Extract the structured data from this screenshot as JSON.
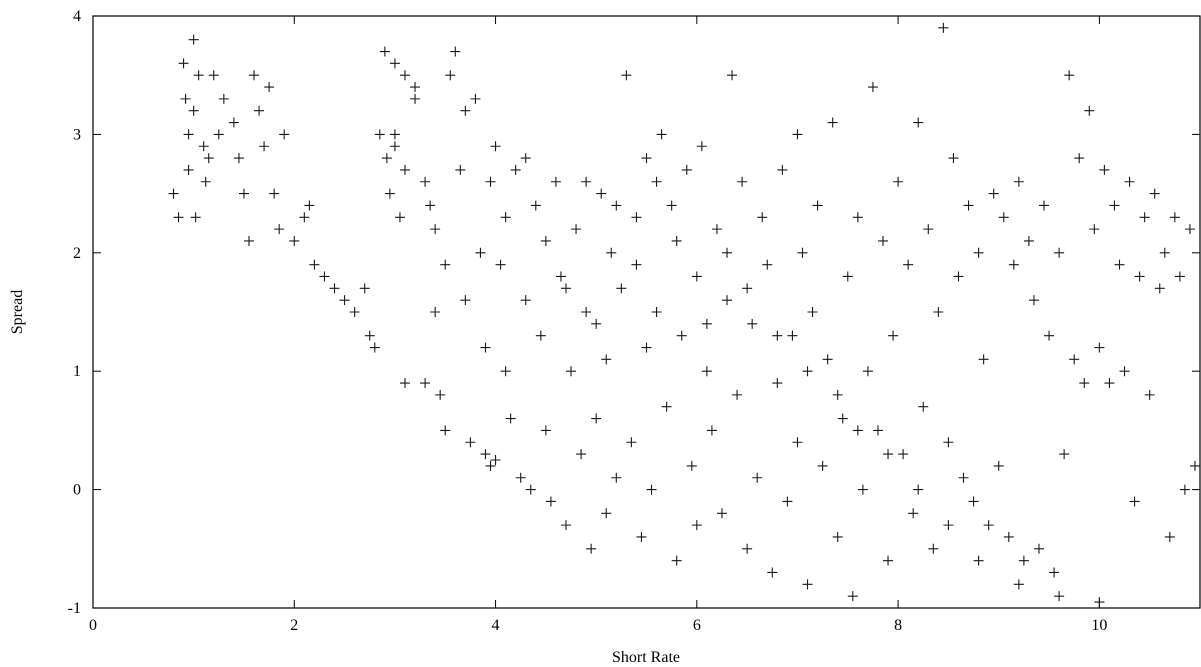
{
  "chart_data": {
    "type": "scatter",
    "title": "",
    "xlabel": "Short Rate",
    "ylabel": "Spread",
    "xlim": [
      0,
      11
    ],
    "ylim": [
      -1,
      4
    ],
    "x_ticks": [
      0,
      2,
      4,
      6,
      8,
      10
    ],
    "y_ticks": [
      -1,
      0,
      1,
      2,
      3,
      4
    ],
    "x_tick_labels": [
      "0",
      "2",
      "4",
      "6",
      "8",
      "10"
    ],
    "y_tick_labels": [
      "-1",
      "0",
      "1",
      "2",
      "3",
      "4"
    ],
    "grid": false,
    "legend": "none",
    "marker": "plus",
    "marker_color": "#1a1a1a",
    "series": [
      {
        "points": [
          [
            0.8,
            2.5
          ],
          [
            0.85,
            2.3
          ],
          [
            0.9,
            3.6
          ],
          [
            0.92,
            3.3
          ],
          [
            0.95,
            3.0
          ],
          [
            0.95,
            2.7
          ],
          [
            1.0,
            3.8
          ],
          [
            1.0,
            3.2
          ],
          [
            1.02,
            2.3
          ],
          [
            1.05,
            3.5
          ],
          [
            1.1,
            2.9
          ],
          [
            1.12,
            2.6
          ],
          [
            1.15,
            2.8
          ],
          [
            1.2,
            3.5
          ],
          [
            1.25,
            3.0
          ],
          [
            1.3,
            3.3
          ],
          [
            1.4,
            3.1
          ],
          [
            1.45,
            2.8
          ],
          [
            1.5,
            2.5
          ],
          [
            1.55,
            2.1
          ],
          [
            1.6,
            3.5
          ],
          [
            1.65,
            3.2
          ],
          [
            1.7,
            2.9
          ],
          [
            1.75,
            3.4
          ],
          [
            1.8,
            2.5
          ],
          [
            1.85,
            2.2
          ],
          [
            1.9,
            3.0
          ],
          [
            2.0,
            2.1
          ],
          [
            2.1,
            2.3
          ],
          [
            2.15,
            2.4
          ],
          [
            2.2,
            1.9
          ],
          [
            2.3,
            1.8
          ],
          [
            2.4,
            1.7
          ],
          [
            2.5,
            1.6
          ],
          [
            2.6,
            1.5
          ],
          [
            2.7,
            1.7
          ],
          [
            2.75,
            1.3
          ],
          [
            2.8,
            1.2
          ],
          [
            2.85,
            3.0
          ],
          [
            2.9,
            3.7
          ],
          [
            2.92,
            2.8
          ],
          [
            2.95,
            2.5
          ],
          [
            3.0,
            3.6
          ],
          [
            3.0,
            2.9
          ],
          [
            3.05,
            2.3
          ],
          [
            3.1,
            3.5
          ],
          [
            3.1,
            0.9
          ],
          [
            3.2,
            3.4
          ],
          [
            3.3,
            2.6
          ],
          [
            3.3,
            0.9
          ],
          [
            3.4,
            2.2
          ],
          [
            3.4,
            1.5
          ],
          [
            3.45,
            0.8
          ],
          [
            3.5,
            1.9
          ],
          [
            3.5,
            0.5
          ],
          [
            3.6,
            3.7
          ],
          [
            3.65,
            2.7
          ],
          [
            3.7,
            1.6
          ],
          [
            3.75,
            0.4
          ],
          [
            3.8,
            3.3
          ],
          [
            3.85,
            2.0
          ],
          [
            3.9,
            1.2
          ],
          [
            3.9,
            0.3
          ],
          [
            3.95,
            0.2
          ],
          [
            4.0,
            0.25
          ],
          [
            4.0,
            2.9
          ],
          [
            4.05,
            1.9
          ],
          [
            4.1,
            1.0
          ],
          [
            4.15,
            0.6
          ],
          [
            4.2,
            2.7
          ],
          [
            4.25,
            0.1
          ],
          [
            4.3,
            1.6
          ],
          [
            4.35,
            0.0
          ],
          [
            4.4,
            2.4
          ],
          [
            4.45,
            1.3
          ],
          [
            4.5,
            0.5
          ],
          [
            4.55,
            -0.1
          ],
          [
            4.6,
            2.6
          ],
          [
            4.65,
            1.8
          ],
          [
            4.7,
            -0.3
          ],
          [
            4.75,
            1.0
          ],
          [
            4.8,
            2.2
          ],
          [
            4.85,
            0.3
          ],
          [
            4.9,
            1.5
          ],
          [
            4.95,
            -0.5
          ],
          [
            5.0,
            1.4
          ],
          [
            5.0,
            0.6
          ],
          [
            5.05,
            2.5
          ],
          [
            5.1,
            1.1
          ],
          [
            5.1,
            -0.2
          ],
          [
            5.15,
            2.0
          ],
          [
            5.2,
            0.1
          ],
          [
            5.25,
            1.7
          ],
          [
            5.3,
            3.5
          ],
          [
            5.35,
            0.4
          ],
          [
            5.4,
            2.3
          ],
          [
            5.45,
            -0.4
          ],
          [
            5.5,
            1.2
          ],
          [
            5.5,
            2.8
          ],
          [
            5.55,
            0.0
          ],
          [
            5.6,
            1.5
          ],
          [
            5.65,
            3.0
          ],
          [
            5.7,
            0.7
          ],
          [
            5.75,
            2.4
          ],
          [
            5.8,
            -0.6
          ],
          [
            5.85,
            1.3
          ],
          [
            5.9,
            2.7
          ],
          [
            5.95,
            0.2
          ],
          [
            6.0,
            1.8
          ],
          [
            6.0,
            -0.3
          ],
          [
            6.05,
            2.9
          ],
          [
            6.1,
            1.0
          ],
          [
            6.15,
            0.5
          ],
          [
            6.2,
            2.2
          ],
          [
            6.25,
            -0.2
          ],
          [
            6.3,
            1.6
          ],
          [
            6.35,
            3.5
          ],
          [
            6.4,
            0.8
          ],
          [
            6.45,
            2.6
          ],
          [
            6.5,
            -0.5
          ],
          [
            6.55,
            1.4
          ],
          [
            6.6,
            0.1
          ],
          [
            6.65,
            2.3
          ],
          [
            6.7,
            1.9
          ],
          [
            6.75,
            -0.7
          ],
          [
            6.8,
            0.9
          ],
          [
            6.85,
            2.7
          ],
          [
            6.9,
            -0.1
          ],
          [
            6.95,
            1.3
          ],
          [
            7.0,
            3.0
          ],
          [
            7.0,
            0.4
          ],
          [
            7.05,
            2.0
          ],
          [
            7.1,
            -0.8
          ],
          [
            7.15,
            1.5
          ],
          [
            7.2,
            2.4
          ],
          [
            7.25,
            0.2
          ],
          [
            7.3,
            1.1
          ],
          [
            7.35,
            3.1
          ],
          [
            7.4,
            -0.4
          ],
          [
            7.45,
            0.6
          ],
          [
            7.5,
            1.8
          ],
          [
            7.55,
            -0.9
          ],
          [
            7.6,
            2.3
          ],
          [
            7.65,
            0.0
          ],
          [
            7.7,
            1.0
          ],
          [
            7.75,
            3.4
          ],
          [
            7.8,
            0.5
          ],
          [
            7.85,
            2.1
          ],
          [
            7.9,
            -0.6
          ],
          [
            7.95,
            1.3
          ],
          [
            8.0,
            2.6
          ],
          [
            8.05,
            0.3
          ],
          [
            8.1,
            1.9
          ],
          [
            8.15,
            -0.2
          ],
          [
            8.2,
            3.1
          ],
          [
            8.25,
            0.7
          ],
          [
            8.3,
            2.2
          ],
          [
            8.35,
            -0.5
          ],
          [
            8.4,
            1.5
          ],
          [
            8.45,
            3.9
          ],
          [
            8.5,
            0.4
          ],
          [
            8.55,
            2.8
          ],
          [
            8.6,
            1.8
          ],
          [
            8.65,
            0.1
          ],
          [
            8.7,
            2.4
          ],
          [
            8.75,
            -0.1
          ],
          [
            8.8,
            2.0
          ],
          [
            8.85,
            1.1
          ],
          [
            8.9,
            -0.3
          ],
          [
            8.95,
            2.5
          ],
          [
            9.0,
            0.2
          ],
          [
            9.05,
            2.3
          ],
          [
            9.1,
            -0.4
          ],
          [
            9.15,
            1.9
          ],
          [
            9.2,
            2.6
          ],
          [
            9.25,
            -0.6
          ],
          [
            9.3,
            2.1
          ],
          [
            9.35,
            1.6
          ],
          [
            9.4,
            -0.5
          ],
          [
            9.45,
            2.4
          ],
          [
            9.5,
            1.3
          ],
          [
            9.55,
            -0.7
          ],
          [
            9.6,
            2.0
          ],
          [
            9.65,
            0.3
          ],
          [
            9.7,
            3.5
          ],
          [
            9.75,
            1.1
          ],
          [
            9.8,
            2.8
          ],
          [
            9.85,
            0.9
          ],
          [
            9.9,
            3.2
          ],
          [
            9.95,
            2.2
          ],
          [
            10.0,
            1.2
          ],
          [
            10.05,
            2.7
          ],
          [
            10.1,
            0.9
          ],
          [
            10.15,
            2.4
          ],
          [
            10.2,
            1.9
          ],
          [
            10.25,
            1.0
          ],
          [
            10.3,
            2.6
          ],
          [
            10.35,
            -0.1
          ],
          [
            10.4,
            1.8
          ],
          [
            10.45,
            2.3
          ],
          [
            10.5,
            0.8
          ],
          [
            10.55,
            2.5
          ],
          [
            10.6,
            1.7
          ],
          [
            10.65,
            2.0
          ],
          [
            10.7,
            -0.4
          ],
          [
            10.75,
            2.3
          ],
          [
            10.8,
            1.8
          ],
          [
            10.85,
            0.0
          ],
          [
            10.9,
            2.2
          ],
          [
            10.95,
            0.2
          ],
          [
            3.0,
            3.0
          ],
          [
            3.1,
            2.7
          ],
          [
            3.2,
            3.3
          ],
          [
            3.35,
            2.4
          ],
          [
            3.55,
            3.5
          ],
          [
            3.7,
            3.2
          ],
          [
            3.95,
            2.6
          ],
          [
            4.1,
            2.3
          ],
          [
            4.3,
            2.8
          ],
          [
            4.5,
            2.1
          ],
          [
            4.7,
            1.7
          ],
          [
            4.9,
            2.6
          ],
          [
            5.2,
            2.4
          ],
          [
            5.4,
            1.9
          ],
          [
            5.6,
            2.6
          ],
          [
            5.8,
            2.1
          ],
          [
            6.1,
            1.4
          ],
          [
            6.3,
            2.0
          ],
          [
            6.5,
            1.7
          ],
          [
            6.8,
            1.3
          ],
          [
            7.1,
            1.0
          ],
          [
            7.4,
            0.8
          ],
          [
            7.6,
            0.5
          ],
          [
            7.9,
            0.3
          ],
          [
            8.2,
            0.0
          ],
          [
            8.5,
            -0.3
          ],
          [
            8.8,
            -0.6
          ],
          [
            9.2,
            -0.8
          ],
          [
            9.6,
            -0.9
          ],
          [
            10.0,
            -0.95
          ]
        ]
      }
    ]
  }
}
